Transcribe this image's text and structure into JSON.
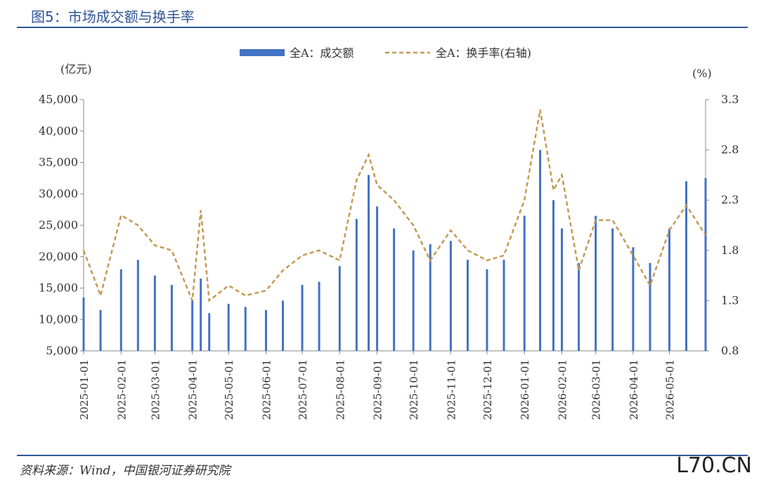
{
  "header": {
    "title": "图5：市场成交额与换手率"
  },
  "footer": {
    "source": "资料来源：Wind，中国银河证券研究院",
    "watermark": "L70.CN"
  },
  "colors": {
    "bar": "#4472c4",
    "line": "#c49a56",
    "title": "#2f5597"
  },
  "chart_data": {
    "type": "bar",
    "title": "图5：市场成交额与换手率",
    "y_left_unit": "(亿元)",
    "y_right_unit": "(%)",
    "y_left_ticks": [
      "5,000",
      "10,000",
      "15,000",
      "20,000",
      "25,000",
      "30,000",
      "35,000",
      "40,000",
      "45,000"
    ],
    "y_right_ticks": [
      "0.8",
      "1.3",
      "1.8",
      "2.3",
      "2.8",
      "3.3"
    ],
    "ylim_left": [
      5000,
      45000
    ],
    "ylim_right": [
      0.8,
      3.3
    ],
    "x_ticks": [
      "2025-01-01",
      "2025-02-01",
      "2025-03-01",
      "2025-04-01",
      "2025-05-01",
      "2025-06-01",
      "2025-07-01",
      "2025-08-01",
      "2025-09-01",
      "2025-10-01",
      "2025-11-01",
      "2025-12-01",
      "2026-01-01",
      "2026-02-01",
      "2026-03-01",
      "2026-04-01",
      "2026-05-01"
    ],
    "legend": [
      "全A：成交额",
      "全A：换手率(右轴)"
    ],
    "legend_position": "top-center",
    "series": [
      {
        "name": "全A：成交额",
        "type": "bar",
        "axis": "left",
        "x": [
          "2025-01-01",
          "2025-01-15",
          "2025-02-01",
          "2025-02-15",
          "2025-03-01",
          "2025-03-15",
          "2025-04-01",
          "2025-04-08",
          "2025-04-15",
          "2025-05-01",
          "2025-05-15",
          "2025-06-01",
          "2025-06-15",
          "2025-07-01",
          "2025-07-15",
          "2025-08-01",
          "2025-08-15",
          "2025-08-25",
          "2025-09-01",
          "2025-09-15",
          "2025-10-01",
          "2025-10-15",
          "2025-11-01",
          "2025-11-15",
          "2025-12-01",
          "2025-12-15",
          "2026-01-01",
          "2026-01-14",
          "2026-01-25",
          "2026-02-01",
          "2026-02-15",
          "2026-03-01",
          "2026-03-15",
          "2026-04-01",
          "2026-04-15",
          "2026-05-01",
          "2026-05-15",
          "2026-05-31"
        ],
        "values": [
          13500,
          11500,
          18000,
          19500,
          17000,
          15500,
          13000,
          16500,
          11000,
          12500,
          12000,
          11500,
          13000,
          15500,
          16000,
          18500,
          26000,
          33000,
          28000,
          24500,
          21000,
          22000,
          22500,
          19500,
          18000,
          19500,
          26500,
          37000,
          29000,
          24500,
          19000,
          26500,
          24500,
          21500,
          19000,
          24500,
          32000,
          32500
        ]
      },
      {
        "name": "全A：换手率(右轴)",
        "type": "line",
        "axis": "right",
        "x": [
          "2025-01-01",
          "2025-01-15",
          "2025-02-01",
          "2025-02-15",
          "2025-03-01",
          "2025-03-15",
          "2025-04-01",
          "2025-04-08",
          "2025-04-15",
          "2025-05-01",
          "2025-05-15",
          "2025-06-01",
          "2025-06-15",
          "2025-07-01",
          "2025-07-15",
          "2025-08-01",
          "2025-08-15",
          "2025-08-25",
          "2025-09-01",
          "2025-09-15",
          "2025-10-01",
          "2025-10-15",
          "2025-11-01",
          "2025-11-15",
          "2025-12-01",
          "2025-12-15",
          "2026-01-01",
          "2026-01-14",
          "2026-01-25",
          "2026-02-01",
          "2026-02-15",
          "2026-03-01",
          "2026-03-15",
          "2026-04-01",
          "2026-04-15",
          "2026-05-01",
          "2026-05-15",
          "2026-05-31"
        ],
        "values": [
          1.8,
          1.35,
          2.15,
          2.05,
          1.85,
          1.8,
          1.3,
          2.2,
          1.3,
          1.45,
          1.35,
          1.4,
          1.6,
          1.75,
          1.8,
          1.7,
          2.5,
          2.75,
          2.45,
          2.3,
          2.05,
          1.7,
          2.0,
          1.8,
          1.7,
          1.75,
          2.3,
          3.2,
          2.4,
          2.55,
          1.6,
          2.1,
          2.1,
          1.75,
          1.45,
          2.0,
          2.25,
          1.95
        ]
      }
    ]
  }
}
